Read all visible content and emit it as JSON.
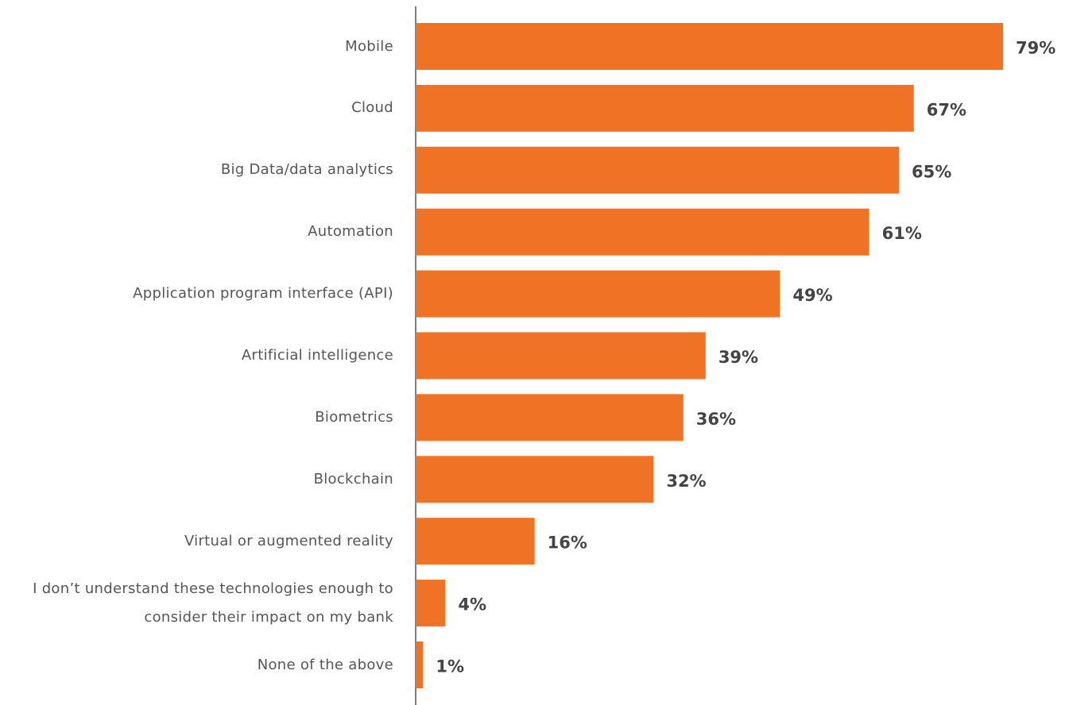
{
  "chart_data": {
    "type": "bar",
    "orientation": "horizontal",
    "color": "#f07224",
    "categories": [
      "Mobile",
      "Cloud",
      "Big Data/data analytics",
      "Automation",
      "Application program interface (API)",
      "Artificial intelligence",
      "Biometrics",
      "Blockchain",
      "Virtual or augmented reality",
      "I don’t understand these technologies enough to consider their impact on my bank",
      "None of the above"
    ],
    "values": [
      79,
      67,
      65,
      61,
      49,
      39,
      36,
      32,
      16,
      4,
      1
    ],
    "value_labels": [
      "79%",
      "67%",
      "65%",
      "61%",
      "49%",
      "39%",
      "36%",
      "32%",
      "16%",
      "4%",
      "1%"
    ]
  }
}
